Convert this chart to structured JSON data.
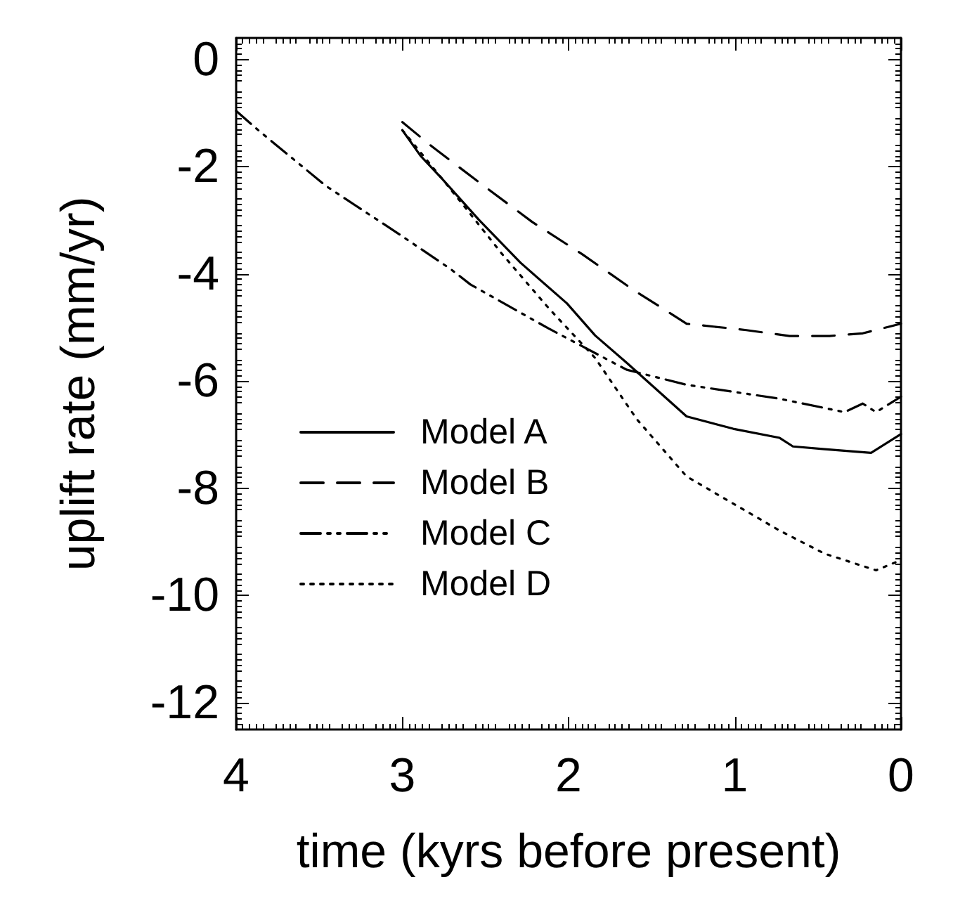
{
  "chart_data": {
    "type": "line",
    "xlabel": "time (kyrs before present)",
    "ylabel": "uplift rate (mm/yr)",
    "xlim": [
      4,
      0
    ],
    "xticks": [
      4,
      3,
      2,
      1,
      0
    ],
    "ylim": [
      -12.5,
      0.4
    ],
    "yticks": [
      -12,
      -10,
      -8,
      -6,
      -4,
      -2,
      0
    ],
    "grid": false,
    "legend": "bottom left",
    "marker": "none",
    "series": [
      {
        "name": "Model A",
        "color": "#000000",
        "line_style": "solid",
        "x": [
          3.0,
          2.89,
          2.76,
          2.54,
          2.29,
          2.01,
          1.84,
          1.65,
          1.29,
          1.01,
          0.73,
          0.65,
          0.46,
          0.18,
          0
        ],
        "values": [
          -1.32,
          -1.8,
          -2.23,
          -2.99,
          -3.79,
          -4.55,
          -5.15,
          -5.66,
          -6.66,
          -6.89,
          -7.06,
          -7.22,
          -7.27,
          -7.34,
          -6.99
        ]
      },
      {
        "name": "Model B",
        "color": "#000000",
        "line_style": "dashed",
        "x": [
          3.0,
          2.82,
          2.51,
          2.22,
          1.92,
          1.61,
          1.29,
          0.93,
          0.67,
          0.43,
          0.23,
          0
        ],
        "values": [
          -1.17,
          -1.63,
          -2.36,
          -3.03,
          -3.63,
          -4.3,
          -4.93,
          -5.05,
          -5.16,
          -5.16,
          -5.11,
          -4.93
        ]
      },
      {
        "name": "Model C",
        "color": "#000000",
        "line_style": "dashdot",
        "x": [
          4.0,
          3.86,
          3.46,
          3.01,
          2.71,
          2.59,
          2.12,
          1.65,
          1.29,
          0.73,
          0.34,
          0.23,
          0.15,
          0
        ],
        "values": [
          -0.96,
          -1.34,
          -2.36,
          -3.28,
          -3.91,
          -4.2,
          -5.02,
          -5.79,
          -6.07,
          -6.33,
          -6.58,
          -6.42,
          -6.58,
          -6.29
        ]
      },
      {
        "name": "Model D",
        "color": "#000000",
        "line_style": "dotted",
        "x": [
          3.0,
          2.76,
          2.62,
          2.4,
          2.12,
          1.84,
          1.59,
          1.29,
          0.73,
          0.46,
          0.15,
          0
        ],
        "values": [
          -1.32,
          -2.23,
          -2.77,
          -3.63,
          -4.64,
          -5.57,
          -6.71,
          -7.78,
          -8.79,
          -9.22,
          -9.53,
          -9.34
        ]
      }
    ]
  }
}
